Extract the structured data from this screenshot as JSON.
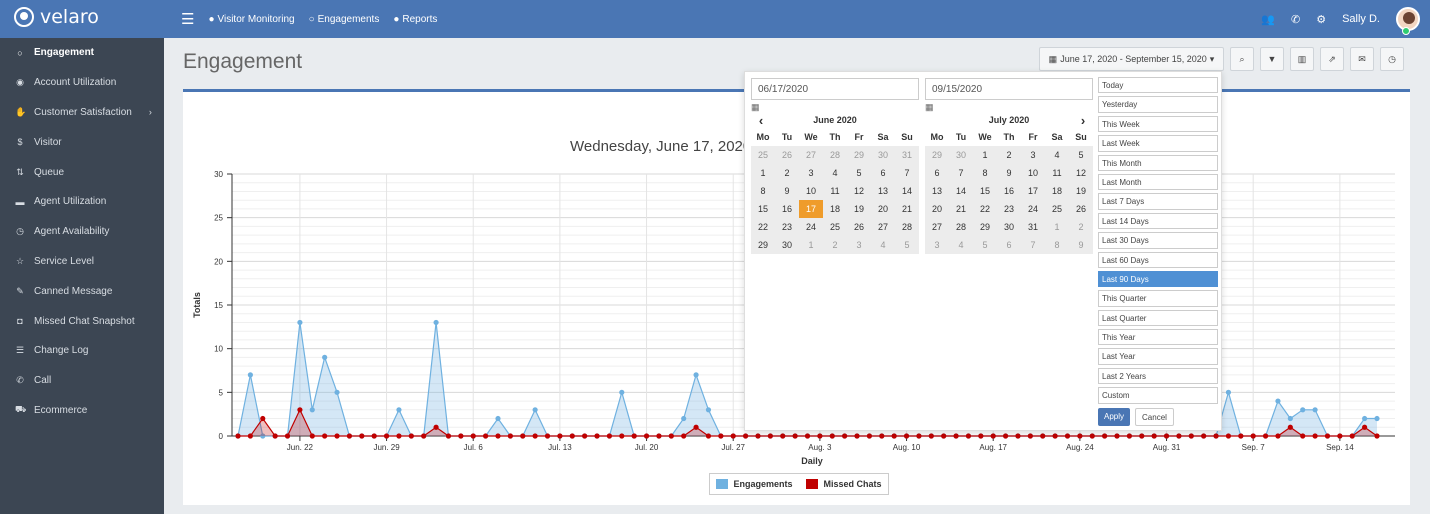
{
  "app": {
    "logo": "velaro",
    "user": "Sally D."
  },
  "nav": {
    "items": [
      {
        "label": "Visitor Monitoring"
      },
      {
        "label": "Engagements"
      },
      {
        "label": "Reports"
      }
    ]
  },
  "sidebar": {
    "items": [
      {
        "label": "Engagement",
        "icon": "chat-icon"
      },
      {
        "label": "Account Utilization",
        "icon": "dashboard-icon"
      },
      {
        "label": "Customer Satisfaction",
        "icon": "thumbs-up-icon"
      },
      {
        "label": "Visitor",
        "icon": "dollar-icon"
      },
      {
        "label": "Queue",
        "icon": "sort-icon"
      },
      {
        "label": "Agent Utilization",
        "icon": "list-icon"
      },
      {
        "label": "Agent Availability",
        "icon": "clock-icon"
      },
      {
        "label": "Service Level",
        "icon": "star-icon"
      },
      {
        "label": "Canned Message",
        "icon": "edit-icon"
      },
      {
        "label": "Missed Chat Snapshot",
        "icon": "camera-icon"
      },
      {
        "label": "Change Log",
        "icon": "database-icon"
      },
      {
        "label": "Call",
        "icon": "phone-icon"
      },
      {
        "label": "Ecommerce",
        "icon": "cart-icon"
      }
    ]
  },
  "page": {
    "title": "Engagement",
    "date_range": "June 17, 2020 - September 15, 2020",
    "partial_label": "En",
    "chart_title": "Wednesday, June 17, 2020 - "
  },
  "picker": {
    "start_value": "06/17/2020",
    "end_value": "09/15/2020",
    "dow": [
      "Mo",
      "Tu",
      "We",
      "Th",
      "Fr",
      "Sa",
      "Su"
    ],
    "left": {
      "title": "June 2020",
      "days": [
        "25",
        "26",
        "27",
        "28",
        "29",
        "30",
        "31",
        "1",
        "2",
        "3",
        "4",
        "5",
        "6",
        "7",
        "8",
        "9",
        "10",
        "11",
        "12",
        "13",
        "14",
        "15",
        "16",
        "17",
        "18",
        "19",
        "20",
        "21",
        "22",
        "23",
        "24",
        "25",
        "26",
        "27",
        "28",
        "29",
        "30",
        "1",
        "2",
        "3",
        "4",
        "5"
      ]
    },
    "right": {
      "title": "July 2020",
      "days": [
        "29",
        "30",
        "1",
        "2",
        "3",
        "4",
        "5",
        "6",
        "7",
        "8",
        "9",
        "10",
        "11",
        "12",
        "13",
        "14",
        "15",
        "16",
        "17",
        "18",
        "19",
        "20",
        "21",
        "22",
        "23",
        "24",
        "25",
        "26",
        "27",
        "28",
        "29",
        "30",
        "31",
        "1",
        "2",
        "3",
        "4",
        "5",
        "6",
        "7",
        "8",
        "9"
      ]
    },
    "ranges": [
      "Today",
      "Yesterday",
      "This Week",
      "Last Week",
      "This Month",
      "Last Month",
      "Last 7 Days",
      "Last 14 Days",
      "Last 30 Days",
      "Last 60 Days",
      "Last 90 Days",
      "This Quarter",
      "Last Quarter",
      "This Year",
      "Last Year",
      "Last 2 Years",
      "Custom"
    ],
    "active_range": "Last 90 Days",
    "apply": "Apply",
    "cancel": "Cancel"
  },
  "colors": {
    "header": "#4a76b4",
    "sidebar": "#3c4653",
    "engagements": "#6fb1e0",
    "missed": "#c00000",
    "selected_day": "#ef9c2b",
    "active_range": "#4f90d4"
  },
  "chart_data": {
    "type": "area",
    "title": "Wednesday, June 17, 2020 - ",
    "xlabel": "Daily",
    "ylabel": "Totals",
    "ylim": [
      0,
      30
    ],
    "yticks": [
      0,
      5,
      10,
      15,
      20,
      25,
      30
    ],
    "xtick_labels": [
      "Jun. 22",
      "Jun. 29",
      "Jul. 6",
      "Jul. 13",
      "Jul. 20",
      "Jul. 27",
      "Aug. 3",
      "Aug. 10",
      "Aug. 17",
      "Aug. 24",
      "Aug. 31",
      "Sep. 7",
      "Sep. 14"
    ],
    "xtick_positions": [
      5,
      12,
      19,
      26,
      33,
      40,
      47,
      54,
      61,
      68,
      75,
      82,
      89
    ],
    "grid": true,
    "legend": "bottom-center",
    "series": [
      {
        "name": "Engagements",
        "values": [
          0,
          7,
          0,
          0,
          0,
          13,
          3,
          9,
          5,
          0,
          0,
          0,
          0,
          3,
          0,
          0,
          13,
          0,
          0,
          0,
          0,
          2,
          0,
          0,
          3,
          0,
          0,
          0,
          0,
          0,
          0,
          5,
          0,
          0,
          0,
          0,
          2,
          7,
          3,
          0,
          0,
          0,
          0,
          0,
          0,
          0,
          0,
          0,
          0,
          0,
          0,
          0,
          0,
          0,
          0,
          0,
          0,
          0,
          0,
          0,
          0,
          0,
          0,
          0,
          0,
          0,
          0,
          0,
          0,
          0,
          0,
          0,
          0,
          0,
          0,
          0,
          0,
          0,
          0,
          0,
          5,
          0,
          0,
          0,
          4,
          2,
          3,
          3,
          0,
          0,
          0,
          2,
          2
        ]
      },
      {
        "name": "Missed Chats",
        "values": [
          0,
          0,
          2,
          0,
          0,
          3,
          0,
          0,
          0,
          0,
          0,
          0,
          0,
          0,
          0,
          0,
          1,
          0,
          0,
          0,
          0,
          0,
          0,
          0,
          0,
          0,
          0,
          0,
          0,
          0,
          0,
          0,
          0,
          0,
          0,
          0,
          0,
          1,
          0,
          0,
          0,
          0,
          0,
          0,
          0,
          0,
          0,
          0,
          0,
          0,
          0,
          0,
          0,
          0,
          0,
          0,
          0,
          0,
          0,
          0,
          0,
          0,
          0,
          0,
          0,
          0,
          0,
          0,
          0,
          0,
          0,
          0,
          0,
          0,
          0,
          0,
          0,
          0,
          0,
          0,
          0,
          0,
          0,
          0,
          0,
          1,
          0,
          0,
          0,
          0,
          0,
          1,
          0
        ]
      }
    ]
  }
}
